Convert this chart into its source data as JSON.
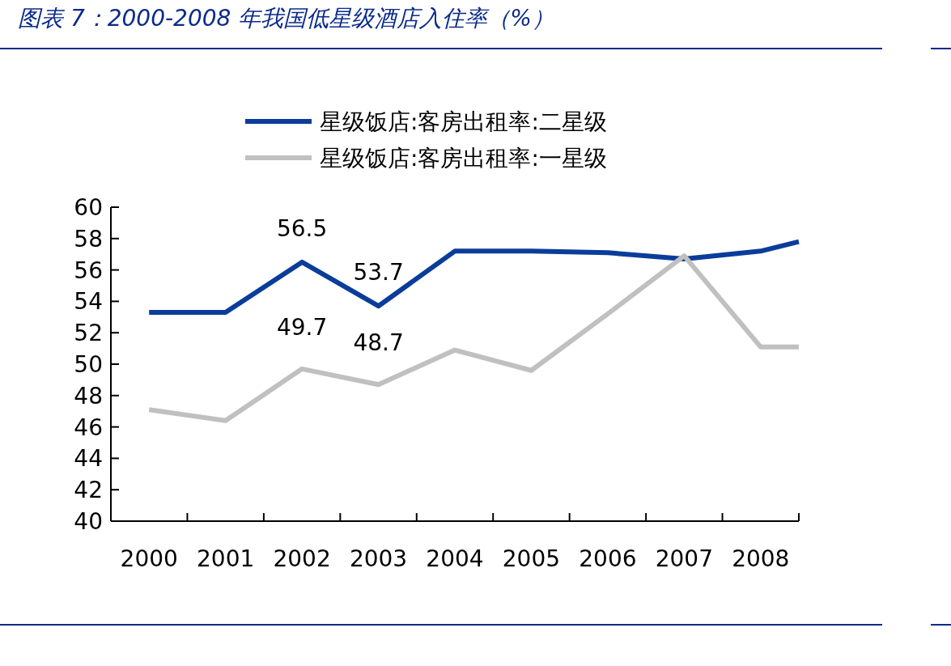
{
  "chart_data": {
    "type": "line",
    "title": "图表 7：2000-2008 年我国低星级酒店入住率（%）",
    "x": [
      2000,
      2001,
      2002,
      2003,
      2004,
      2005,
      2006,
      2007,
      2008,
      2008.5
    ],
    "series": [
      {
        "name": "星级饭店:客房出租率:二星级",
        "color": "#0a3d9a",
        "values": [
          53.3,
          53.3,
          56.5,
          53.7,
          57.2,
          57.2,
          57.1,
          56.7,
          57.2,
          57.8
        ],
        "value_labels": [
          null,
          null,
          "56.5",
          "53.7",
          null,
          null,
          null,
          null,
          null,
          null
        ]
      },
      {
        "name": "星级饭店:客房出租率:一星级",
        "color": "#c0c0c0",
        "values": [
          47.1,
          46.4,
          49.7,
          48.7,
          50.9,
          49.6,
          53.2,
          56.9,
          51.1,
          51.1
        ],
        "value_labels": [
          null,
          null,
          "49.7",
          "48.7",
          null,
          null,
          null,
          null,
          null,
          null
        ]
      }
    ],
    "xlim": [
      1999.5,
      2008.5
    ],
    "xticks": [
      {
        "value": 2000,
        "label": "2000"
      },
      {
        "value": 2001,
        "label": "2001"
      },
      {
        "value": 2002,
        "label": "2002"
      },
      {
        "value": 2003,
        "label": "2003"
      },
      {
        "value": 2004,
        "label": "2004"
      },
      {
        "value": 2005,
        "label": "2005"
      },
      {
        "value": 2006,
        "label": "2006"
      },
      {
        "value": 2007,
        "label": "2007"
      },
      {
        "value": 2008,
        "label": "2008"
      }
    ],
    "ylim": [
      40,
      60
    ],
    "yticks": [
      40,
      42,
      44,
      46,
      48,
      50,
      52,
      54,
      56,
      58,
      60
    ],
    "legend": "top",
    "marker": "none",
    "line_style": "solid"
  }
}
